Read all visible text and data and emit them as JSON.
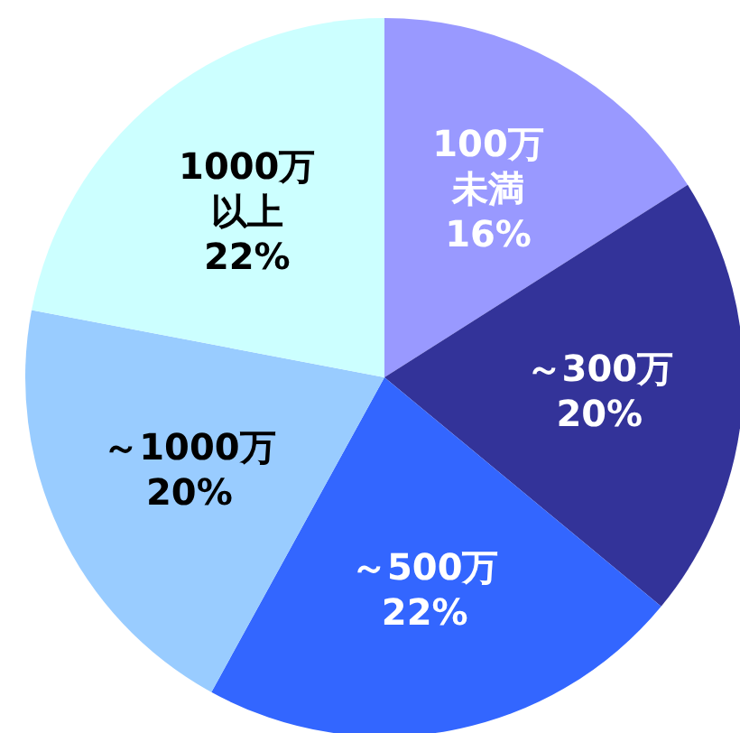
{
  "chart_data": {
    "type": "pie",
    "categories": [
      "100万未満",
      "～300万",
      "～500万",
      "～1000万",
      "1000万以上"
    ],
    "values": [
      16,
      20,
      22,
      20,
      22
    ],
    "value_labels": [
      "16%",
      "20%",
      "22%",
      "20%",
      "22%"
    ],
    "colors": [
      "#9999ff",
      "#333399",
      "#3366ff",
      "#99ccff",
      "#ccffff"
    ],
    "legend": false
  }
}
